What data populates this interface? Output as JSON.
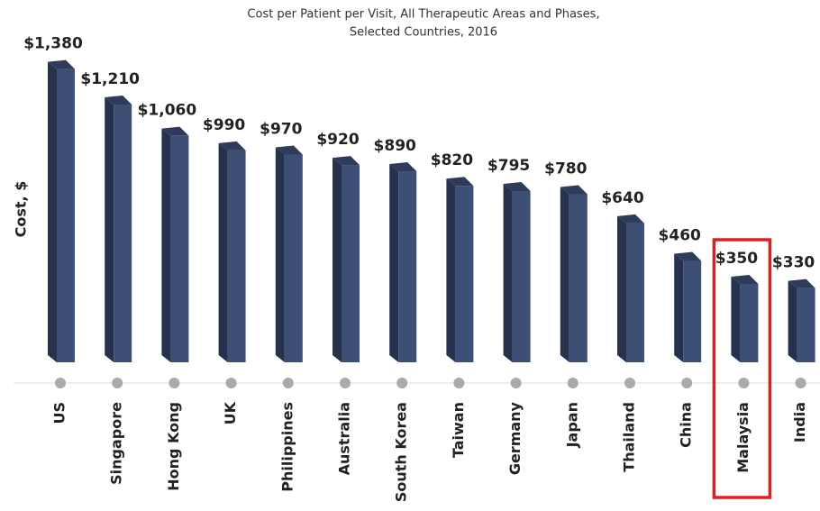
{
  "chart_data": {
    "type": "bar",
    "title": [
      "Cost per Patient per Visit, All Therapeutic Areas and Phases,",
      "Selected Countries, 2016"
    ],
    "y_label": "Cost, $",
    "categories": [
      "US",
      "Singapore",
      "Hong Kong",
      "UK",
      "Philippines",
      "Australia",
      "South Korea",
      "Taiwan",
      "Germany",
      "Japan",
      "Thailand",
      "China",
      "Malaysia",
      "India"
    ],
    "values": [
      1380,
      1210,
      1060,
      990,
      970,
      920,
      890,
      820,
      795,
      780,
      640,
      460,
      350,
      330
    ],
    "value_labels": [
      "$1,380",
      "$1,210",
      "$1,060",
      "$990",
      "$970",
      "$920",
      "$890",
      "$820",
      "$795",
      "$780",
      "$640",
      "$460",
      "$350",
      "$330"
    ],
    "color": "#3e4f76",
    "ylim": [
      0,
      1400
    ],
    "highlight": {
      "category": "Malaysia",
      "color": "#e31b23"
    }
  }
}
